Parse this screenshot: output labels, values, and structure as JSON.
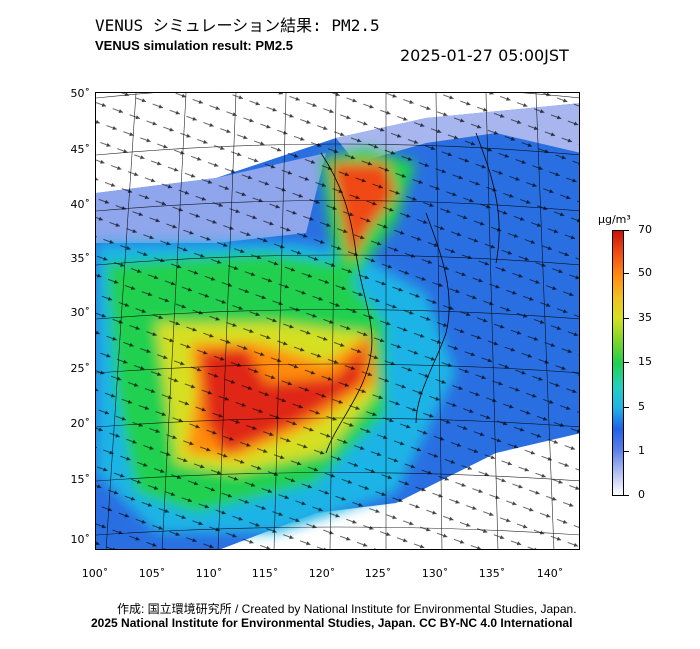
{
  "header": {
    "title_jp": "VENUS シミュレーション結果: PM2.5",
    "title_en": "VENUS simulation result: PM2.5",
    "timestamp": "2025-01-27 05:00JST"
  },
  "map": {
    "lat_labels": [
      "50˚",
      "45˚",
      "40˚",
      "35˚",
      "30˚",
      "25˚",
      "20˚",
      "15˚",
      "10˚"
    ],
    "lon_labels": [
      "100˚",
      "105˚",
      "110˚",
      "115˚",
      "120˚",
      "125˚",
      "130˚",
      "135˚",
      "140˚"
    ]
  },
  "colorbar": {
    "unit": "μg/m³",
    "labels": [
      "70",
      "50",
      "35",
      "15",
      "5",
      "1",
      "0"
    ]
  },
  "footer": {
    "credit": "作成: 国立環境研究所 / Created by National Institute for Environmental Studies, Japan.",
    "license": "2025 National Institute for Environmental Studies, Japan. CC BY-NC 4.0 International"
  },
  "colors": {
    "high": "#d8180c",
    "mid": "#22d050",
    "low": "#1e63e6",
    "background": "#ffffff"
  }
}
